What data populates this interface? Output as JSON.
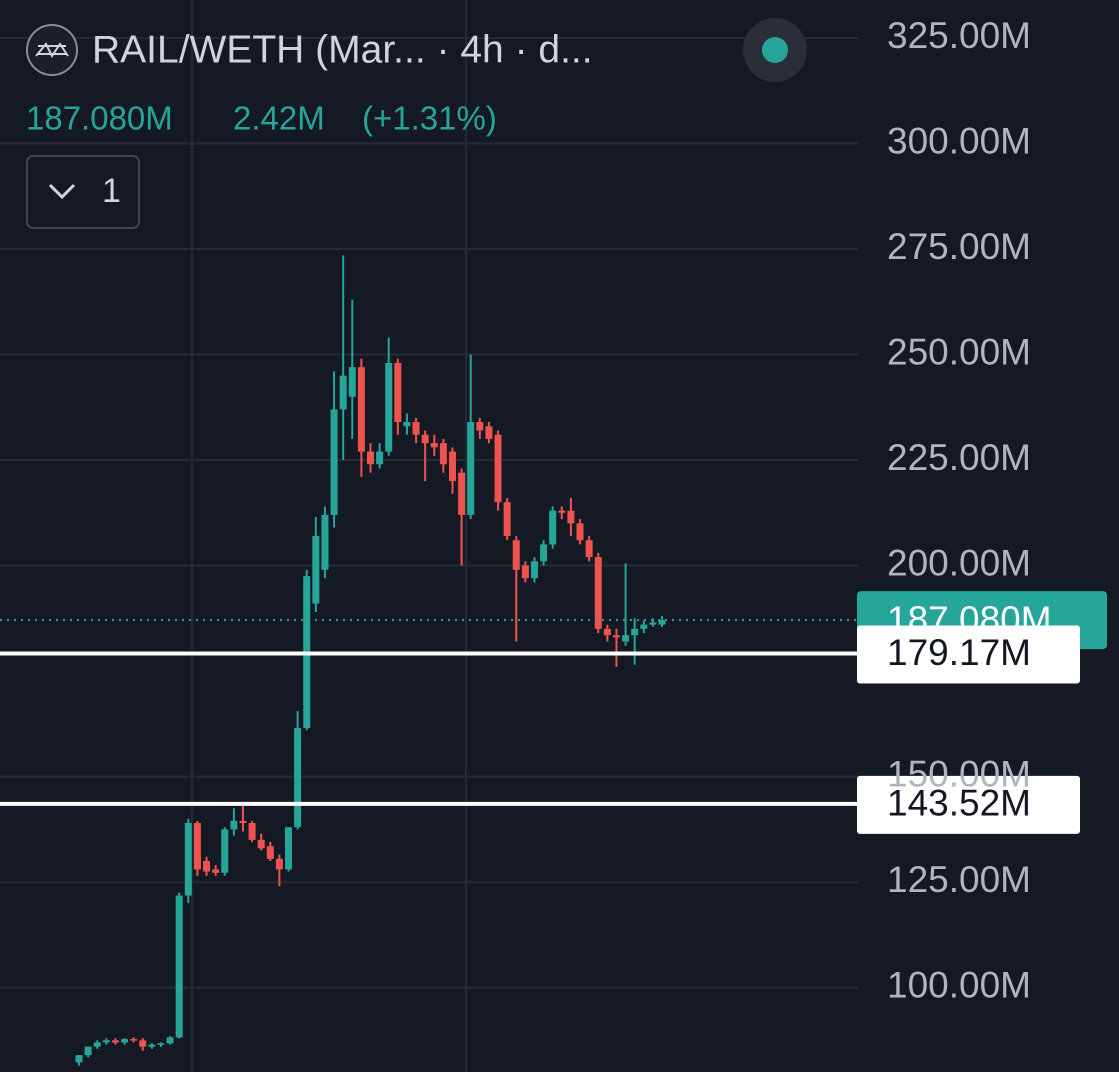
{
  "chart_data": {
    "type": "candlestick",
    "title": "RAIL/WETH (Mar... · 4h · d...",
    "last_price": {
      "value": 187.08,
      "label": "187.080M"
    },
    "change": "2.42M",
    "change_percent": "(+1.31%)",
    "indicator_count": "1",
    "up_color": "#26a69a",
    "down_color": "#ef5350",
    "ylim": [
      80,
      334
    ],
    "yticks": [
      {
        "value": 100,
        "label": "100.00M"
      },
      {
        "value": 125,
        "label": "125.00M"
      },
      {
        "value": 150,
        "label": "150.00M"
      },
      {
        "value": 200,
        "label": "200.00M"
      },
      {
        "value": 225,
        "label": "225.00M"
      },
      {
        "value": 250,
        "label": "250.00M"
      },
      {
        "value": 275,
        "label": "275.00M"
      },
      {
        "value": 300,
        "label": "300.00M"
      },
      {
        "value": 325,
        "label": "325.00M"
      }
    ],
    "grid": true,
    "horizontal_lines": [
      {
        "value": 179.17,
        "label": "179.17M"
      },
      {
        "value": 143.52,
        "label": "143.52M"
      }
    ],
    "open": [
      82.3,
      84,
      86,
      87,
      87.5,
      87,
      87.8,
      87.5,
      86,
      86.5,
      86.8,
      88.2,
      121.8,
      139,
      130,
      128,
      127.2,
      137.5,
      139.5,
      139,
      135,
      133.5,
      130.5,
      128,
      138,
      161.5,
      191,
      199,
      212,
      237,
      240,
      247,
      227,
      224,
      227,
      248,
      233,
      234,
      231,
      229,
      229,
      227,
      222,
      212,
      234,
      233,
      231,
      215,
      206,
      200,
      197,
      201,
      205,
      213,
      213,
      210,
      206,
      202,
      185,
      183.5,
      182,
      183.5,
      185,
      186,
      186
    ],
    "high": [
      84,
      86,
      87.5,
      88,
      88,
      88,
      88.2,
      88,
      86.8,
      87,
      88.5,
      122.5,
      140,
      139.5,
      131,
      129,
      138,
      142.5,
      143,
      139.5,
      136.5,
      134.5,
      131.5,
      138,
      165.5,
      199,
      211.5,
      214,
      246,
      273.5,
      263,
      249,
      229,
      229,
      254,
      249,
      236,
      235,
      232,
      231,
      230,
      228,
      223,
      250,
      235,
      234,
      232,
      216,
      207,
      201,
      202,
      206,
      214,
      214,
      216,
      211,
      207,
      203,
      186,
      185,
      200.5,
      187.5,
      187,
      187.5,
      188
    ],
    "low": [
      81.5,
      83.5,
      85.5,
      86.5,
      86.5,
      86.5,
      87,
      85,
      85.5,
      86,
      86.5,
      88,
      120,
      126.5,
      126.5,
      126.5,
      126.5,
      136,
      137,
      134.5,
      132.5,
      130,
      124,
      127.5,
      137.5,
      161,
      189,
      197,
      209,
      225,
      230,
      221,
      222,
      223,
      226,
      231,
      231,
      229,
      220,
      226,
      222,
      217,
      200,
      211,
      230,
      229,
      213,
      206,
      182,
      196,
      196,
      200,
      204,
      211,
      207,
      205,
      201,
      184,
      182,
      176,
      181,
      176.5,
      184,
      185.5,
      185.5
    ],
    "close": [
      84,
      86,
      87,
      87.5,
      87,
      87.8,
      87.5,
      86,
      86.5,
      86.8,
      88.2,
      121.8,
      139,
      128,
      127.5,
      127.2,
      137.5,
      139.5,
      139,
      135,
      133,
      130.5,
      128,
      138,
      161.5,
      197.5,
      207,
      212,
      237,
      245,
      247,
      227,
      224,
      227,
      248,
      234,
      234,
      231,
      229,
      228,
      224,
      220,
      212,
      234,
      232,
      230,
      215,
      207,
      199,
      197,
      201,
      205,
      213,
      212.5,
      210,
      206,
      202,
      185,
      183.5,
      183,
      183.5,
      185,
      186,
      186.5,
      187.08
    ]
  }
}
